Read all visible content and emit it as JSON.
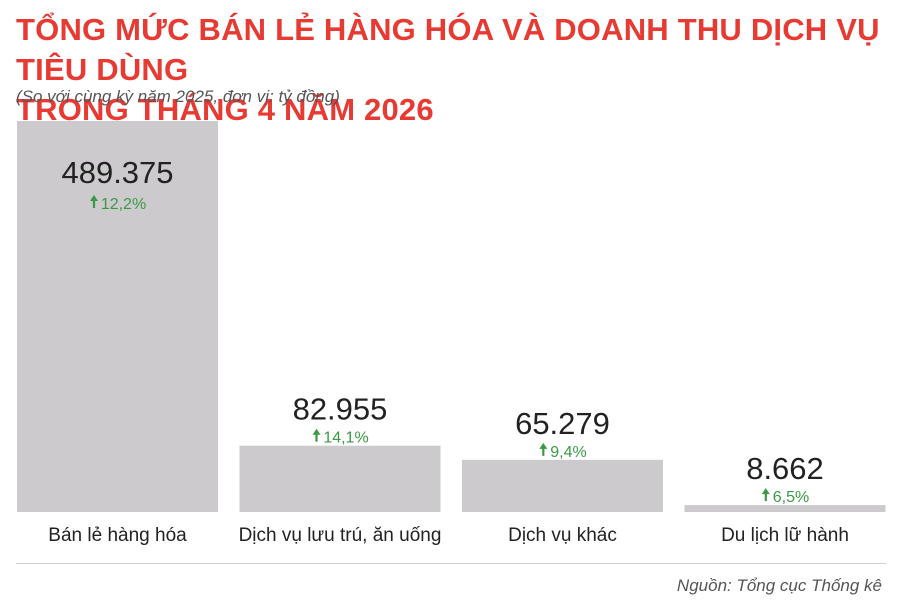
{
  "title_line1": "TỔNG MỨC BÁN LẺ HÀNG HÓA VÀ DOANH THU DỊCH VỤ TIÊU DÙNG",
  "title_line2": "TRONG THÁNG 4 NĂM 2026",
  "subtitle": "(So với cùng kỳ năm 2025, đơn vị: tỷ đồng)",
  "source": "Nguồn: Tổng cục Thống kê",
  "colors": {
    "title": "#e63a33",
    "bar": "#cccacc",
    "growth": "#3a9a44",
    "value": "#222222",
    "label": "#222222"
  },
  "chart_data": {
    "type": "bar",
    "categories": [
      "Bán lẻ hàng hóa",
      "Dịch vụ lưu trú, ăn uống",
      "Dịch vụ khác",
      "Du lịch lữ hành"
    ],
    "values": [
      489375,
      82955,
      65279,
      8662
    ],
    "value_labels": [
      "489.375",
      "82.955",
      "65.279",
      "8.662"
    ],
    "growth_labels": [
      "12,2%",
      "14,1%",
      "9,4%",
      "6,5%"
    ],
    "growth_icon": "up-arrow-icon",
    "ylabel": "",
    "ylim": [
      0,
      489375
    ],
    "grid": false,
    "legend": "none"
  }
}
